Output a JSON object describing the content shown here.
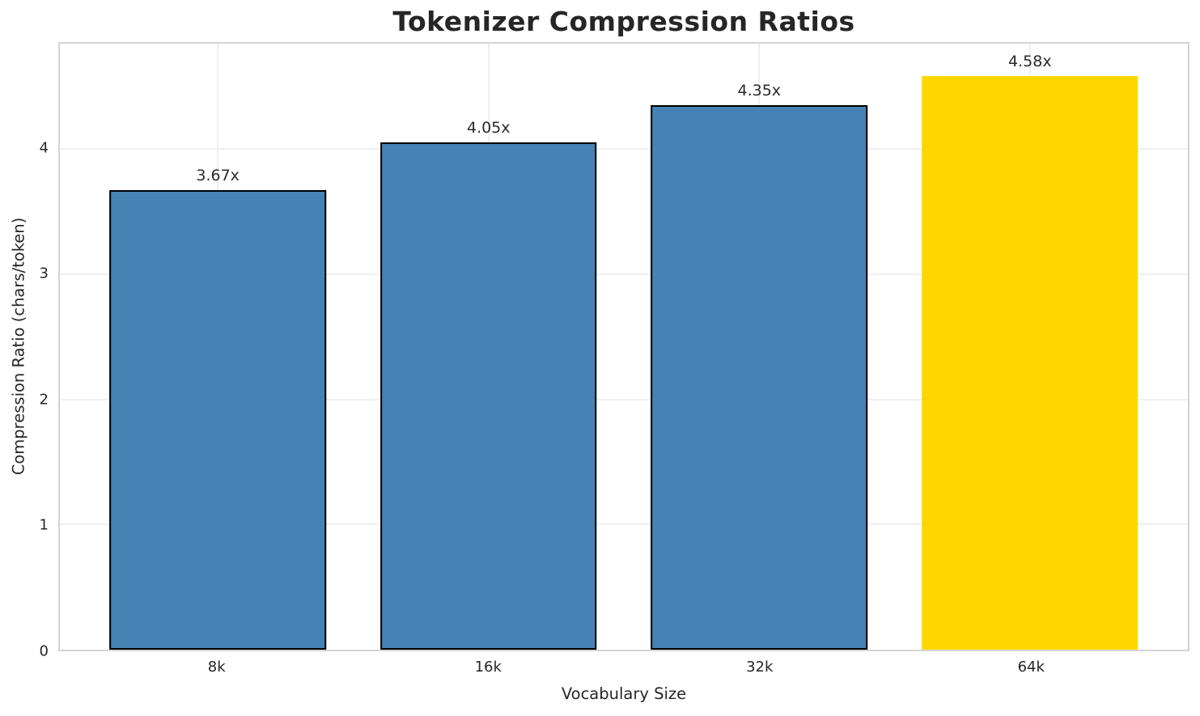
{
  "title": "Tokenizer Compression Ratios",
  "chart_data": {
    "type": "bar",
    "title": "Tokenizer Compression Ratios",
    "xlabel": "Vocabulary Size",
    "ylabel": "Compression Ratio (chars/token)",
    "categories": [
      "8k",
      "16k",
      "32k",
      "64k"
    ],
    "values": [
      3.67,
      4.05,
      4.35,
      4.58
    ],
    "bar_labels": [
      "3.67x",
      "4.05x",
      "4.35x",
      "4.58x"
    ],
    "bar_colors": [
      "#4682B4",
      "#4682B4",
      "#4682B4",
      "#FFD700"
    ],
    "bar_edge_colors": [
      "#000000",
      "#000000",
      "#000000",
      "none"
    ],
    "yticks": [
      0,
      1,
      2,
      3,
      4
    ],
    "ylim": [
      0,
      4.84
    ],
    "grid": true,
    "legend_position": "none",
    "colors": {
      "base_bar": "#4682B4",
      "highlight_bar": "#FFD700",
      "bar_edge": "#000000",
      "text": "#262626",
      "grid": "#efefef",
      "spine": "#d4d4d4",
      "background": "#ffffff"
    }
  }
}
